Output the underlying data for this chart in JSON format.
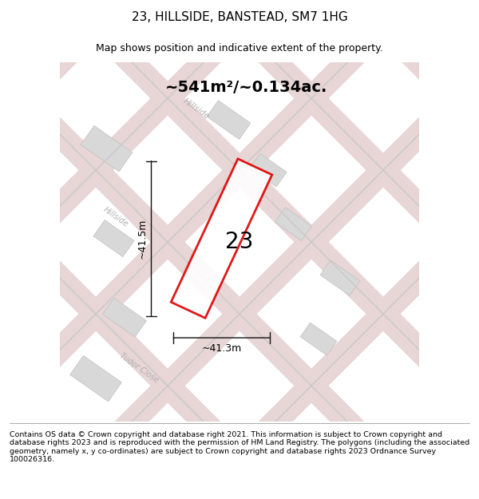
{
  "title": "23, HILLSIDE, BANSTEAD, SM7 1HG",
  "subtitle": "Map shows position and indicative extent of the property.",
  "area_text": "~541m²/~0.134ac.",
  "label_number": "23",
  "dim_width": "~41.3m",
  "dim_height": "~41.5m",
  "footer": "Contains OS data © Crown copyright and database right 2021. This information is subject to Crown copyright and database rights 2023 and is reproduced with the permission of HM Land Registry. The polygons (including the associated geometry, namely x, y co-ordinates) are subject to Crown copyright and database rights 2023 Ordnance Survey 100026316.",
  "map_bg": "#eeecea",
  "road_pink_fill": "#e8d5d5",
  "road_pink_edge": "#d4b8b8",
  "road_gray_edge": "#c8c8c8",
  "block_fill": "#d8d8d8",
  "block_edge": "#c0c0c0",
  "property_outline_color": "#dd0000",
  "property_fill": "#ffffff",
  "dim_line_color": "#111111",
  "street_label_color": "#b0b0b0",
  "title_fontsize": 11,
  "subtitle_fontsize": 9,
  "area_fontsize": 14,
  "number_fontsize": 20,
  "dim_fontsize": 9,
  "footer_fontsize": 6.8,
  "pink_road_lw": 22,
  "gray_road_lw": 1.0
}
